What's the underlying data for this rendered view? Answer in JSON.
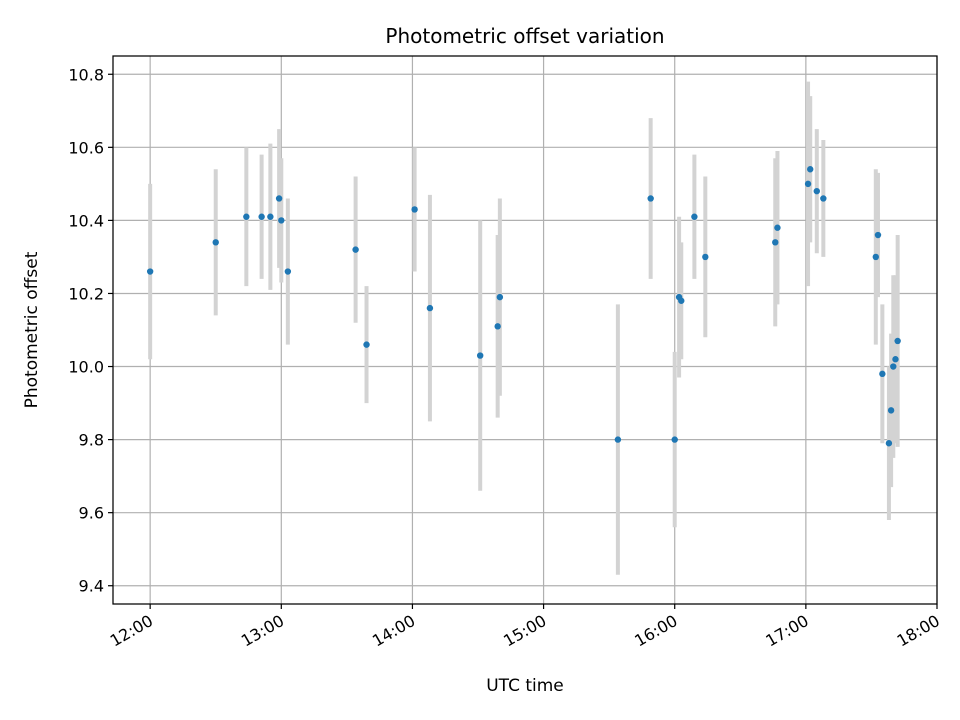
{
  "chart_data": {
    "type": "scatter",
    "title": "Photometric offset variation",
    "xlabel": "UTC time",
    "ylabel": "Photometric offset",
    "x_axis_type": "time",
    "xlim": [
      "11:43",
      "18:00"
    ],
    "ylim": [
      9.35,
      10.85
    ],
    "x_ticks": [
      "12:00",
      "13:00",
      "14:00",
      "15:00",
      "16:00",
      "17:00",
      "18:00"
    ],
    "y_ticks": [
      9.4,
      9.6,
      9.8,
      10.0,
      10.2,
      10.4,
      10.6,
      10.8
    ],
    "y_tick_labels": [
      "9.4",
      "9.6",
      "9.8",
      "10.0",
      "10.2",
      "10.4",
      "10.6",
      "10.8"
    ],
    "grid": true,
    "colors": {
      "points": "#1f77b4",
      "error_bars": "#d3d3d3",
      "grid": "#b0b0b0",
      "axes": "#000000"
    },
    "series": [
      {
        "points": [
          {
            "x": "12:00",
            "y": 10.26,
            "err": 0.24
          },
          {
            "x": "12:30",
            "y": 10.34,
            "err": 0.2
          },
          {
            "x": "12:44",
            "y": 10.41,
            "err": 0.19
          },
          {
            "x": "12:51",
            "y": 10.41,
            "err": 0.17
          },
          {
            "x": "12:55",
            "y": 10.41,
            "err": 0.2
          },
          {
            "x": "12:59",
            "y": 10.46,
            "err": 0.19
          },
          {
            "x": "13:00",
            "y": 10.4,
            "err": 0.17
          },
          {
            "x": "13:03",
            "y": 10.26,
            "err": 0.2
          },
          {
            "x": "13:34",
            "y": 10.32,
            "err": 0.2
          },
          {
            "x": "13:39",
            "y": 10.06,
            "err": 0.16
          },
          {
            "x": "14:01",
            "y": 10.43,
            "err": 0.17
          },
          {
            "x": "14:08",
            "y": 10.16,
            "err": 0.31
          },
          {
            "x": "14:31",
            "y": 10.03,
            "err": 0.37
          },
          {
            "x": "14:39",
            "y": 10.11,
            "err": 0.25
          },
          {
            "x": "14:40",
            "y": 10.19,
            "err": 0.27
          },
          {
            "x": "15:34",
            "y": 9.8,
            "err": 0.37
          },
          {
            "x": "15:49",
            "y": 10.46,
            "err": 0.22
          },
          {
            "x": "16:00",
            "y": 9.8,
            "err": 0.24
          },
          {
            "x": "16:02",
            "y": 10.19,
            "err": 0.22
          },
          {
            "x": "16:03",
            "y": 10.18,
            "err": 0.16
          },
          {
            "x": "16:09",
            "y": 10.41,
            "err": 0.17
          },
          {
            "x": "16:14",
            "y": 10.3,
            "err": 0.22
          },
          {
            "x": "16:46",
            "y": 10.34,
            "err": 0.23
          },
          {
            "x": "16:47",
            "y": 10.38,
            "err": 0.21
          },
          {
            "x": "17:01",
            "y": 10.5,
            "err": 0.28
          },
          {
            "x": "17:02",
            "y": 10.54,
            "err": 0.2
          },
          {
            "x": "17:05",
            "y": 10.48,
            "err": 0.17
          },
          {
            "x": "17:08",
            "y": 10.46,
            "err": 0.16
          },
          {
            "x": "17:32",
            "y": 10.3,
            "err": 0.24
          },
          {
            "x": "17:33",
            "y": 10.36,
            "err": 0.17
          },
          {
            "x": "17:35",
            "y": 9.98,
            "err": 0.19
          },
          {
            "x": "17:38",
            "y": 9.79,
            "err": 0.21
          },
          {
            "x": "17:39",
            "y": 9.88,
            "err": 0.21
          },
          {
            "x": "17:40",
            "y": 10.0,
            "err": 0.25
          },
          {
            "x": "17:41",
            "y": 10.02,
            "err": 0.23
          },
          {
            "x": "17:42",
            "y": 10.07,
            "err": 0.29
          }
        ]
      }
    ]
  }
}
